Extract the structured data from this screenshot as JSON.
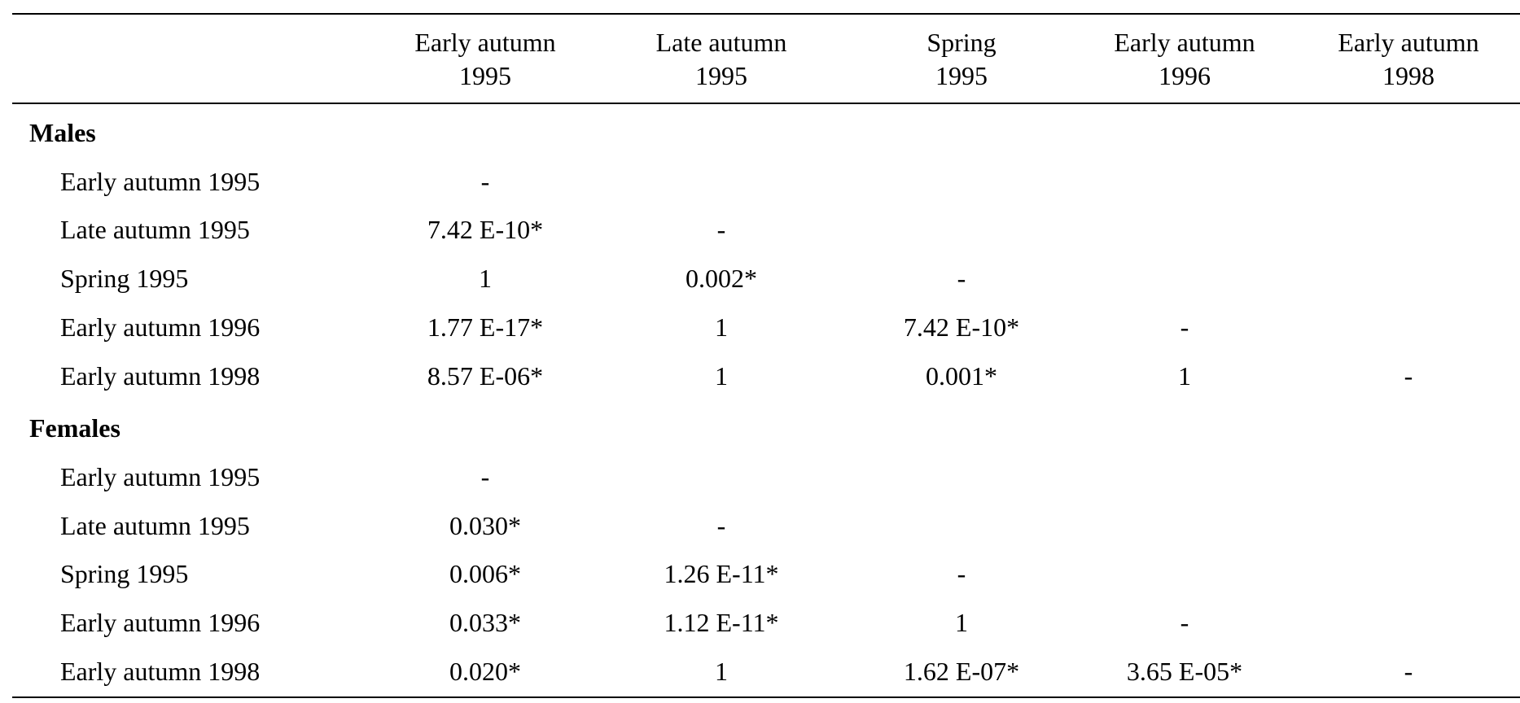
{
  "table": {
    "columns": [
      [
        "Early autumn",
        "1995"
      ],
      [
        "Late autumn",
        "1995"
      ],
      [
        "Spring",
        "1995"
      ],
      [
        "Early autumn",
        "1996"
      ],
      [
        "Early autumn",
        "1998"
      ]
    ],
    "groups": [
      {
        "label": "Males",
        "rows": [
          {
            "label": "Early autumn 1995",
            "cells": [
              "-"
            ]
          },
          {
            "label": "Late autumn 1995",
            "cells": [
              "7.42 E-10*",
              "-"
            ]
          },
          {
            "label": "Spring 1995",
            "cells": [
              "1",
              "0.002*",
              "-"
            ]
          },
          {
            "label": "Early autumn 1996",
            "cells": [
              "1.77 E-17*",
              "1",
              "7.42 E-10*",
              "-"
            ]
          },
          {
            "label": "Early autumn 1998",
            "cells": [
              "8.57 E-06*",
              "1",
              "0.001*",
              "1",
              "-"
            ]
          }
        ]
      },
      {
        "label": "Females",
        "rows": [
          {
            "label": "Early autumn 1995",
            "cells": [
              "-"
            ]
          },
          {
            "label": "Late autumn 1995",
            "cells": [
              "0.030*",
              "-"
            ]
          },
          {
            "label": "Spring 1995",
            "cells": [
              "0.006*",
              "1.26 E-11*",
              "-"
            ]
          },
          {
            "label": "Early autumn 1996",
            "cells": [
              "0.033*",
              "1.12 E-11*",
              "1",
              "-"
            ]
          },
          {
            "label": "Early autumn 1998",
            "cells": [
              "0.020*",
              "1",
              "1.62 E-07*",
              "3.65 E-05*",
              "-"
            ]
          }
        ]
      }
    ]
  }
}
